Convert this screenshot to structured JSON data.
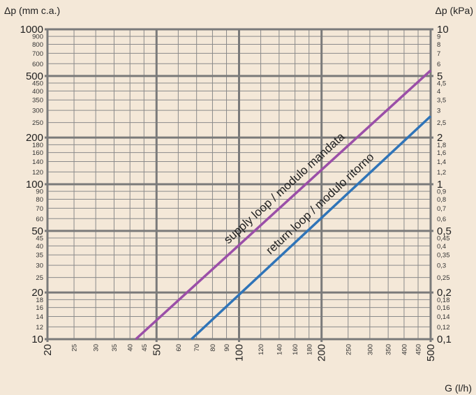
{
  "chart_data": {
    "type": "line",
    "xscale": "log",
    "yscale": "log",
    "xlim": [
      20,
      500
    ],
    "ylim": [
      10,
      1000
    ],
    "x_label": "G (l/h)",
    "y_label_left": "Δp (mm c.a.)",
    "y_label_right": "Δp (kPa)",
    "grid": true,
    "x_ticks_major": [
      {
        "value": 20,
        "label": "20"
      },
      {
        "value": 50,
        "label": "50"
      },
      {
        "value": 100,
        "label": "100"
      },
      {
        "value": 200,
        "label": "200"
      },
      {
        "value": 500,
        "label": "500"
      }
    ],
    "x_ticks_minor": [
      {
        "value": 25,
        "label": "25"
      },
      {
        "value": 30,
        "label": "30"
      },
      {
        "value": 35,
        "label": "35"
      },
      {
        "value": 40,
        "label": "40"
      },
      {
        "value": 45,
        "label": "45"
      },
      {
        "value": 60,
        "label": "60"
      },
      {
        "value": 70,
        "label": "70"
      },
      {
        "value": 80,
        "label": "80"
      },
      {
        "value": 90,
        "label": "90"
      },
      {
        "value": 120,
        "label": "120"
      },
      {
        "value": 140,
        "label": "140"
      },
      {
        "value": 160,
        "label": "160"
      },
      {
        "value": 180,
        "label": "180"
      },
      {
        "value": 250,
        "label": "250"
      },
      {
        "value": 300,
        "label": "300"
      },
      {
        "value": 350,
        "label": "350"
      },
      {
        "value": 400,
        "label": "400"
      },
      {
        "value": 450,
        "label": "450"
      }
    ],
    "y_ticks_major": [
      {
        "value": 10,
        "label": "10",
        "kpa": "0,1"
      },
      {
        "value": 20,
        "label": "20",
        "kpa": "0,2"
      },
      {
        "value": 50,
        "label": "50",
        "kpa": "0,5"
      },
      {
        "value": 100,
        "label": "100",
        "kpa": "1"
      },
      {
        "value": 200,
        "label": "200",
        "kpa": "2"
      },
      {
        "value": 500,
        "label": "500",
        "kpa": "5"
      },
      {
        "value": 1000,
        "label": "1000",
        "kpa": "10"
      }
    ],
    "y_ticks_minor": [
      {
        "value": 12,
        "label": "12",
        "kpa": "0,12"
      },
      {
        "value": 14,
        "label": "14",
        "kpa": "0,14"
      },
      {
        "value": 16,
        "label": "16",
        "kpa": "0,16"
      },
      {
        "value": 18,
        "label": "18",
        "kpa": "0,18"
      },
      {
        "value": 25,
        "label": "25",
        "kpa": "0,25"
      },
      {
        "value": 30,
        "label": "30",
        "kpa": "0,3"
      },
      {
        "value": 35,
        "label": "35",
        "kpa": "0,35"
      },
      {
        "value": 40,
        "label": "40",
        "kpa": "0,4"
      },
      {
        "value": 45,
        "label": "45",
        "kpa": "0,45"
      },
      {
        "value": 60,
        "label": "60",
        "kpa": "0,6"
      },
      {
        "value": 70,
        "label": "70",
        "kpa": "0,7"
      },
      {
        "value": 80,
        "label": "80",
        "kpa": "0,8"
      },
      {
        "value": 90,
        "label": "90",
        "kpa": "0,9"
      },
      {
        "value": 120,
        "label": "120",
        "kpa": "1,2"
      },
      {
        "value": 140,
        "label": "140",
        "kpa": "1,4"
      },
      {
        "value": 160,
        "label": "160",
        "kpa": "1,6"
      },
      {
        "value": 180,
        "label": "180",
        "kpa": "1,8"
      },
      {
        "value": 250,
        "label": "250",
        "kpa": "2,5"
      },
      {
        "value": 300,
        "label": "300",
        "kpa": "3"
      },
      {
        "value": 350,
        "label": "350",
        "kpa": "3,5"
      },
      {
        "value": 400,
        "label": "400",
        "kpa": "4"
      },
      {
        "value": 450,
        "label": "450",
        "kpa": "4,5"
      },
      {
        "value": 600,
        "label": "600",
        "kpa": "6"
      },
      {
        "value": 700,
        "label": "700",
        "kpa": "7"
      },
      {
        "value": 800,
        "label": "800",
        "kpa": "8"
      },
      {
        "value": 900,
        "label": "900",
        "kpa": "9"
      }
    ],
    "series": [
      {
        "name": "supply loop / modulo mandata",
        "color": "#9b4fa8",
        "x": [
          42,
          500
        ],
        "y": [
          10,
          543
        ]
      },
      {
        "name": "return loop / modulo ritorno",
        "color": "#2f74b8",
        "x": [
          67,
          500
        ],
        "y": [
          10,
          275
        ]
      }
    ]
  }
}
